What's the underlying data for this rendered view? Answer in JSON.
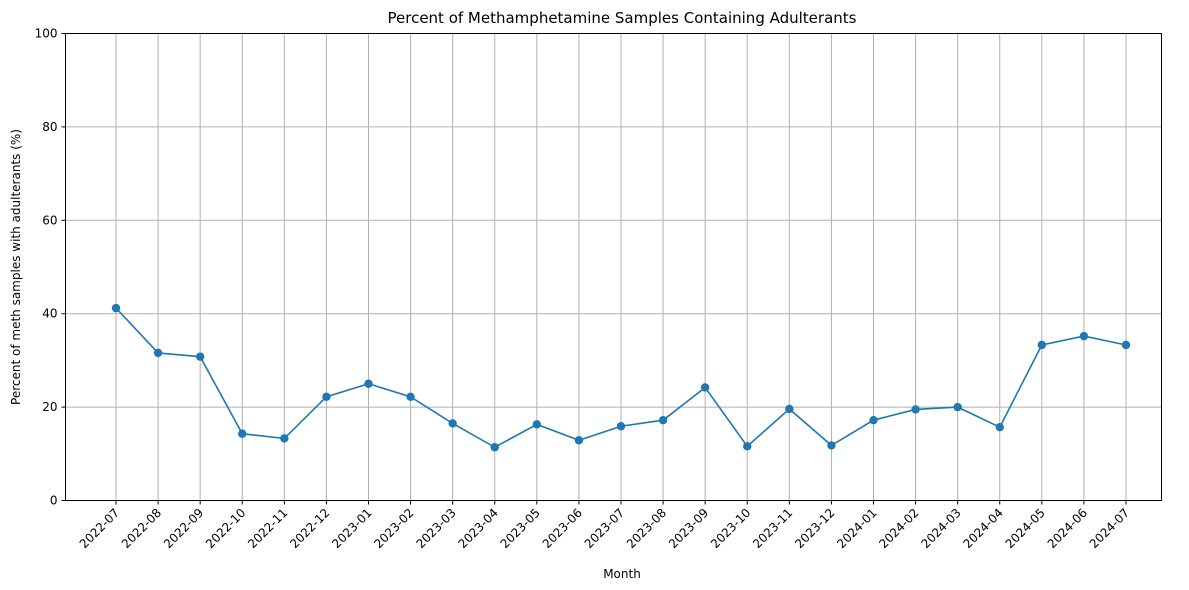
{
  "chart_data": {
    "type": "line",
    "title": "Percent of Methamphetamine Samples Containing Adulterants",
    "xlabel": "Month",
    "ylabel": "Percent of meth samples with adulterants (%)",
    "ylim": [
      0,
      100
    ],
    "yticks": [
      0,
      20,
      40,
      60,
      80,
      100
    ],
    "grid": true,
    "marker": "circle",
    "line_color": "#1f77b4",
    "categories": [
      "2022-07",
      "2022-08",
      "2022-09",
      "2022-10",
      "2022-11",
      "2022-12",
      "2023-01",
      "2023-02",
      "2023-03",
      "2023-04",
      "2023-05",
      "2023-06",
      "2023-07",
      "2023-08",
      "2023-09",
      "2023-10",
      "2023-11",
      "2023-12",
      "2024-01",
      "2024-02",
      "2024-03",
      "2024-04",
      "2024-05",
      "2024-06",
      "2024-07"
    ],
    "values": [
      41.2,
      31.6,
      30.8,
      14.3,
      13.3,
      22.2,
      25.0,
      22.2,
      16.5,
      11.4,
      16.3,
      12.9,
      15.9,
      17.2,
      24.2,
      11.6,
      19.6,
      11.8,
      17.2,
      19.5,
      20.0,
      15.7,
      33.3,
      35.2,
      33.3
    ]
  }
}
